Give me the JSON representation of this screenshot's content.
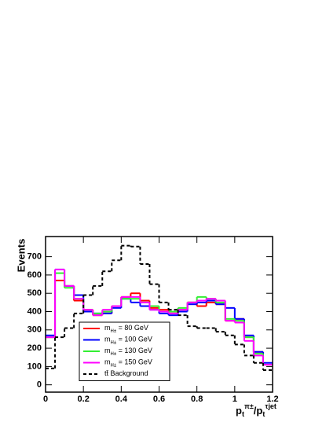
{
  "chart_data": {
    "type": "histogram",
    "y_label": "Events",
    "x_label": [
      {
        "text": "p"
      },
      {
        "text": "t",
        "shift": "sub"
      },
      {
        "text": "π±",
        "shift": "sup"
      },
      {
        "text": "/p"
      },
      {
        "text": "t",
        "shift": "sub"
      },
      {
        "text": "τjet",
        "shift": "sup"
      }
    ],
    "bins": [
      0,
      0.05,
      0.1,
      0.15,
      0.2,
      0.25,
      0.3,
      0.35,
      0.4,
      0.45,
      0.5,
      0.55,
      0.6,
      0.65,
      0.7,
      0.75,
      0.8,
      0.85,
      0.9,
      0.95,
      1.0,
      1.05,
      1.1,
      1.15,
      1.2
    ],
    "series": [
      {
        "name": [
          "m",
          "H±",
          " = 80 GeV"
        ],
        "color": "#ff0000",
        "dash": false,
        "values": [
          260,
          570,
          540,
          460,
          410,
          380,
          390,
          430,
          480,
          500,
          460,
          420,
          410,
          390,
          410,
          450,
          430,
          450,
          440,
          350,
          360,
          260,
          180,
          110
        ]
      },
      {
        "name": [
          "m",
          "H±",
          " = 100 GeV"
        ],
        "color": "#0000ff",
        "dash": false,
        "values": [
          270,
          630,
          540,
          490,
          400,
          390,
          390,
          420,
          470,
          450,
          430,
          410,
          390,
          380,
          400,
          440,
          450,
          460,
          440,
          420,
          360,
          270,
          180,
          120
        ]
      },
      {
        "name": [
          "m",
          "H±",
          " = 130 GeV"
        ],
        "color": "#33ee33",
        "dash": false,
        "values": [
          260,
          610,
          530,
          470,
          410,
          390,
          400,
          430,
          470,
          470,
          450,
          430,
          400,
          400,
          420,
          450,
          480,
          470,
          450,
          360,
          350,
          260,
          170,
          110
        ]
      },
      {
        "name": [
          "m",
          "H±",
          " = 150 GeV"
        ],
        "color": "#ff00ff",
        "dash": false,
        "values": [
          260,
          630,
          540,
          470,
          410,
          380,
          410,
          430,
          480,
          480,
          450,
          410,
          400,
          390,
          410,
          450,
          460,
          470,
          460,
          350,
          340,
          240,
          160,
          110
        ]
      },
      {
        "name": [
          "tt̄ Background"
        ],
        "color": "#000000",
        "dash": true,
        "values": [
          90,
          260,
          310,
          390,
          490,
          540,
          620,
          680,
          760,
          755,
          660,
          550,
          450,
          410,
          380,
          320,
          310,
          310,
          290,
          270,
          220,
          160,
          120,
          80
        ]
      }
    ],
    "xlim": [
      0,
      1.2
    ],
    "xticks": [
      0,
      0.2,
      0.4,
      0.6,
      0.8,
      1,
      1.2
    ],
    "ylim": [
      -40,
      810
    ],
    "yticks": [
      0,
      100,
      200,
      300,
      400,
      500,
      600,
      700
    ]
  }
}
